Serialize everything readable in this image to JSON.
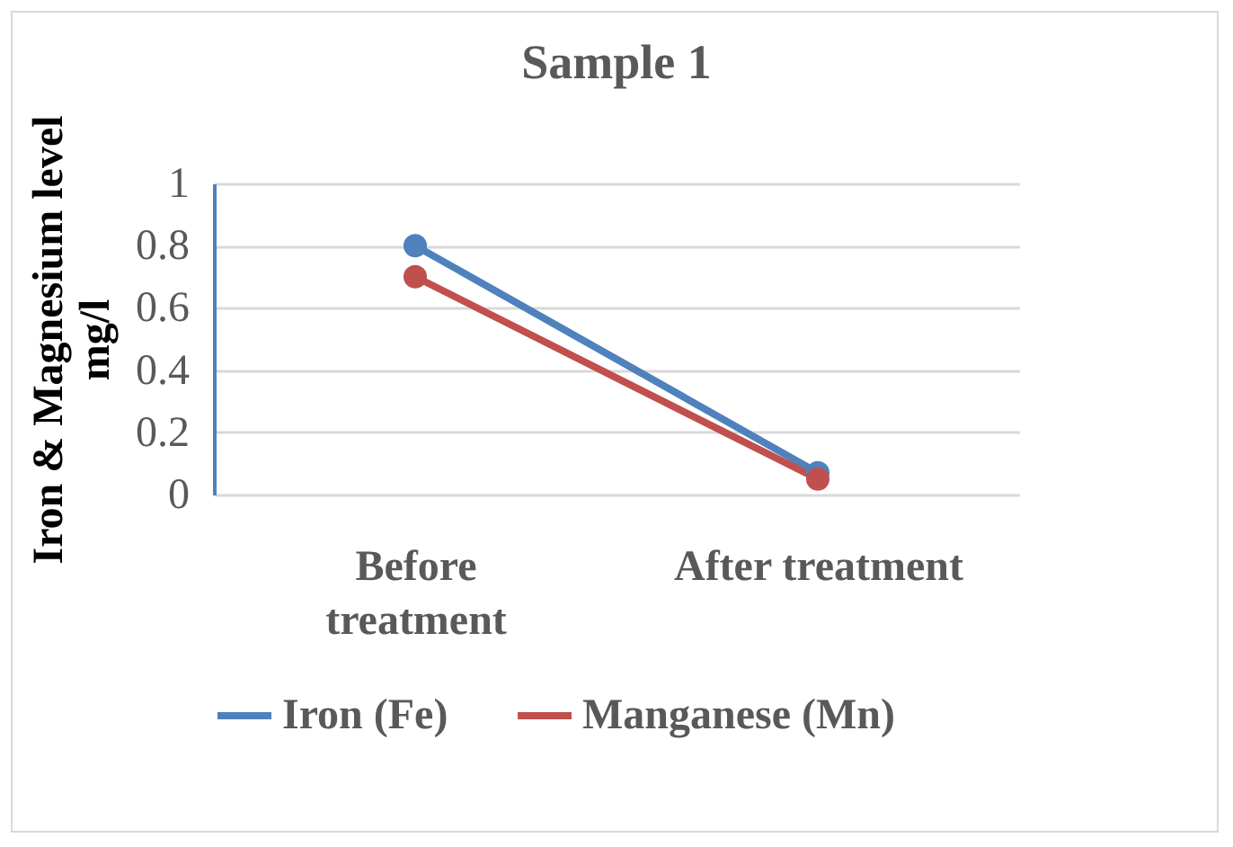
{
  "chart_data": {
    "type": "line",
    "title": "Sample 1",
    "ylabel": "Iron & Magnesium level mg/l",
    "categories": [
      "Before treatment",
      "After treatment"
    ],
    "series": [
      {
        "name": "Iron (Fe)",
        "color": "#4f81bd",
        "values": [
          0.8,
          0.07
        ]
      },
      {
        "name": "Manganese (Mn)",
        "color": "#c0504d",
        "values": [
          0.7,
          0.05
        ]
      }
    ],
    "ylim": [
      0,
      1
    ],
    "yticks": [
      0,
      0.2,
      0.4,
      0.6,
      0.8,
      1
    ],
    "grid": "y",
    "legend": "bottom",
    "marker": "circle",
    "line_style": "solid"
  }
}
